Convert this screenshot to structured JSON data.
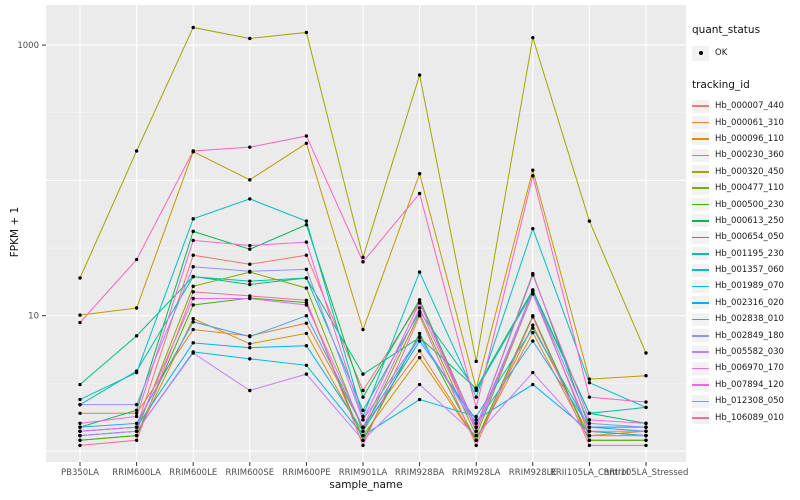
{
  "chart_data": {
    "type": "line",
    "title": "",
    "xlabel": "sample_name",
    "ylabel": "FPKM + 1",
    "y_scale": "log10",
    "ylim": [
      0.83,
      1980
    ],
    "grid": "major-and-minor",
    "legend_position": "right",
    "point_color": "#000000",
    "panel_bg": "#EBEBEB",
    "grid_color": "#FFFFFF",
    "axis_text_color": "#4D4D4D",
    "y_ticks": [
      {
        "label": "1000",
        "value": 1000
      },
      {
        "label": "10",
        "value": 10
      }
    ],
    "categories": [
      "PB350LA",
      "RRIM600LA",
      "RRIM600LE",
      "RRIM600SE",
      "RRIM600PE",
      "RRIM901LA",
      "RRIM928BA",
      "RRIM928LA",
      "RRIM928LE",
      "RRII105LA_Control",
      "RRII105LA_Stressed"
    ],
    "series": [
      {
        "name": "Hb_000007_440",
        "color": "#F8766D",
        "values": [
          1.4,
          1.5,
          28,
          24,
          28,
          2.8,
          12.5,
          1.4,
          15.5,
          1.3,
          1.3
        ]
      },
      {
        "name": "Hb_000061_310",
        "color": "#EA8331",
        "values": [
          1.9,
          1.9,
          7.9,
          7.1,
          8.8,
          1.5,
          5.5,
          1.2,
          7.5,
          1.2,
          1.2
        ]
      },
      {
        "name": "Hb_000096_110",
        "color": "#D89000",
        "values": [
          1.2,
          1.3,
          9.5,
          6.2,
          7.4,
          1.3,
          4.9,
          1.2,
          8.5,
          1.3,
          1.4
        ]
      },
      {
        "name": "Hb_000230_360",
        "color": "#C09B00",
        "values": [
          10.1,
          11.4,
          163,
          101,
          188,
          7.9,
          112,
          2.9,
          119,
          3.4,
          3.6
        ]
      },
      {
        "name": "Hb_000320_450",
        "color": "#A3A500",
        "values": [
          19,
          165,
          1350,
          1120,
          1240,
          27,
          600,
          4.6,
          1135,
          50,
          5.3
        ]
      },
      {
        "name": "Hb_000477_110",
        "color": "#7CAE00",
        "values": [
          1.3,
          1.4,
          16.5,
          21,
          16,
          1.4,
          10.4,
          1.3,
          14.5,
          1.4,
          1.3
        ]
      },
      {
        "name": "Hb_000500_230",
        "color": "#39B600",
        "values": [
          1.2,
          1.3,
          12,
          13.5,
          12.5,
          1.2,
          7.4,
          1.2,
          10,
          1.2,
          1.2
        ]
      },
      {
        "name": "Hb_000613_250",
        "color": "#00BB4E",
        "values": [
          1.5,
          2.0,
          42,
          31,
          47,
          2.5,
          13.1,
          1.5,
          20.5,
          1.5,
          1.5
        ]
      },
      {
        "name": "Hb_000654_050",
        "color": "#00BF7D",
        "values": [
          3.1,
          7.1,
          19.5,
          17,
          19,
          3.7,
          6.9,
          2.9,
          15.5,
          1.9,
          1.6
        ]
      },
      {
        "name": "Hb_001195_230",
        "color": "#00C1A3",
        "values": [
          2.2,
          3.9,
          19.4,
          18,
          19,
          2.0,
          10.7,
          2.8,
          15,
          1.9,
          2.1
        ]
      },
      {
        "name": "Hb_001357_060",
        "color": "#00BFC4",
        "values": [
          2.4,
          3.8,
          52,
          73,
          50,
          1.8,
          21,
          2.5,
          44,
          3.2,
          2.1
        ]
      },
      {
        "name": "Hb_001989_070",
        "color": "#00BAE0",
        "values": [
          1.3,
          1.4,
          5.4,
          4.8,
          4.3,
          1.3,
          2.4,
          1.8,
          8.1,
          1.5,
          1.4
        ]
      },
      {
        "name": "Hb_002316_020",
        "color": "#00B0F6",
        "values": [
          1.4,
          1.5,
          6.3,
          5.8,
          6.0,
          1.4,
          6.5,
          1.7,
          3.1,
          1.4,
          1.3
        ]
      },
      {
        "name": "Hb_002838_010",
        "color": "#35A2FF",
        "values": [
          1.5,
          1.6,
          9.0,
          7.0,
          10,
          1.5,
          6.9,
          1.6,
          6.5,
          1.5,
          1.5
        ]
      },
      {
        "name": "Hb_002849_180",
        "color": "#9590FF",
        "values": [
          2.2,
          2.2,
          23,
          21.3,
          22,
          1.7,
          7.0,
          1.5,
          15,
          1.6,
          1.5
        ]
      },
      {
        "name": "Hb_005582_030",
        "color": "#C77CFF",
        "values": [
          1.3,
          1.4,
          5.3,
          2.8,
          3.7,
          1.2,
          3.1,
          1.3,
          3.8,
          1.3,
          1.3
        ]
      },
      {
        "name": "Hb_006970_170",
        "color": "#E76BF3",
        "values": [
          1.4,
          1.5,
          13.4,
          13.4,
          12,
          1.5,
          11.4,
          1.4,
          14.5,
          1.4,
          1.4
        ]
      },
      {
        "name": "Hb_007894_120",
        "color": "#FA62DB",
        "values": [
          1.6,
          1.8,
          36,
          33,
          35,
          1.7,
          12.4,
          1.5,
          20,
          1.7,
          1.6
        ]
      },
      {
        "name": "Hb_012308_050",
        "color": "#FF62BC",
        "values": [
          8.9,
          26,
          165,
          176,
          213,
          25,
          80,
          2.1,
          108,
          2.5,
          2.3
        ]
      },
      {
        "name": "Hb_106089_010",
        "color": "#FF6A98",
        "values": [
          1.1,
          1.2,
          15,
          14,
          13,
          1.1,
          10,
          1.1,
          9.8,
          1.1,
          1.1
        ]
      }
    ]
  },
  "legend": {
    "quant_status": {
      "title": "quant_status",
      "items": [
        {
          "label": "OK",
          "symbol": "point"
        }
      ]
    },
    "tracking_id_title": "tracking_id"
  }
}
